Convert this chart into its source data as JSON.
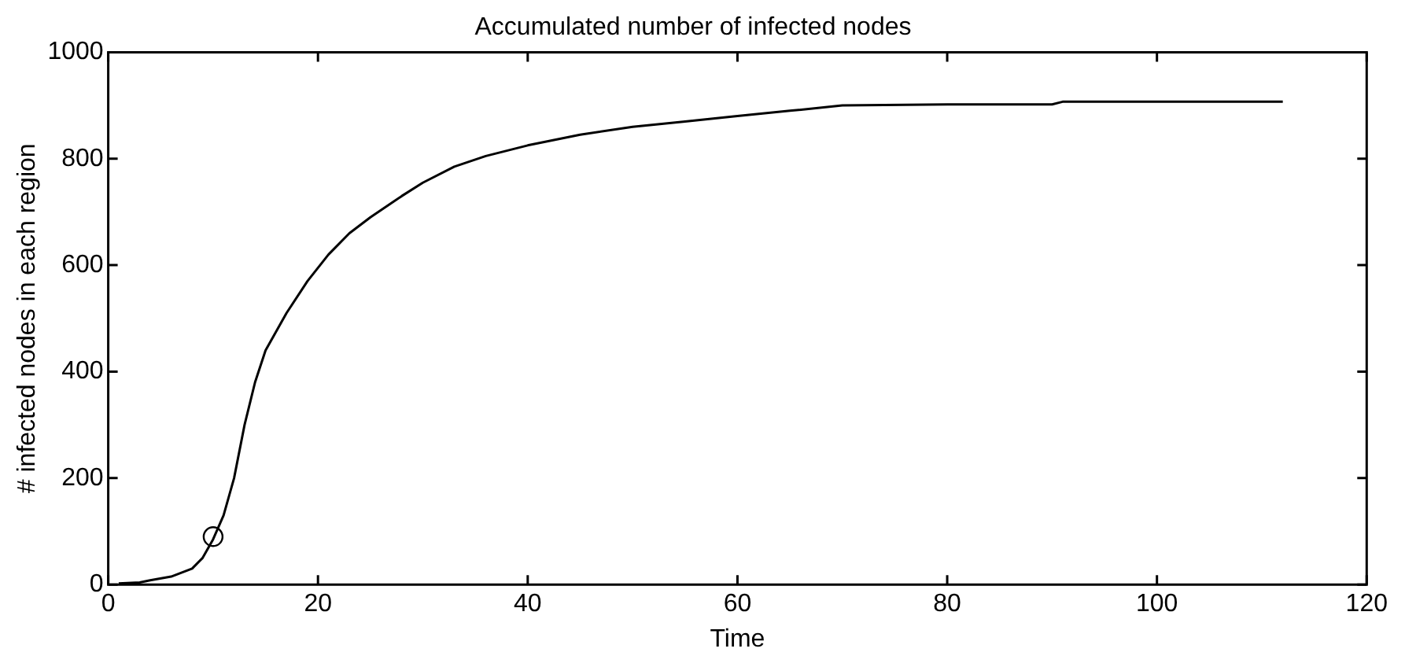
{
  "chart_data": {
    "type": "line",
    "title": "Accumulated number of infected nodes",
    "xlabel": "Time",
    "ylabel": "# infected nodes in each region",
    "xlim": [
      0,
      120
    ],
    "xticks": [
      0,
      20,
      40,
      60,
      80,
      100,
      120
    ],
    "ylim": [
      0,
      1000
    ],
    "yticks": [
      0,
      200,
      400,
      600,
      800,
      1000
    ],
    "grid": false,
    "legend": false,
    "marker": "none",
    "line_style": "solid",
    "series": [
      {
        "color": "#000000",
        "x": [
          1,
          3,
          4,
          6,
          8,
          9,
          10,
          11,
          12,
          13,
          14,
          15,
          17,
          19,
          21,
          23,
          25,
          28,
          30,
          33,
          36,
          40,
          45,
          50,
          55,
          60,
          65,
          70,
          80,
          90,
          91,
          112
        ],
        "values": [
          2,
          4,
          8,
          15,
          30,
          50,
          85,
          130,
          200,
          300,
          380,
          440,
          510,
          570,
          620,
          660,
          690,
          730,
          755,
          785,
          805,
          825,
          845,
          860,
          870,
          880,
          890,
          900,
          902,
          902,
          907,
          907
        ]
      },
      {
        "type": "scatter",
        "color": "#000000",
        "marker": "circle",
        "x": [
          10
        ],
        "values": [
          90
        ]
      }
    ]
  }
}
